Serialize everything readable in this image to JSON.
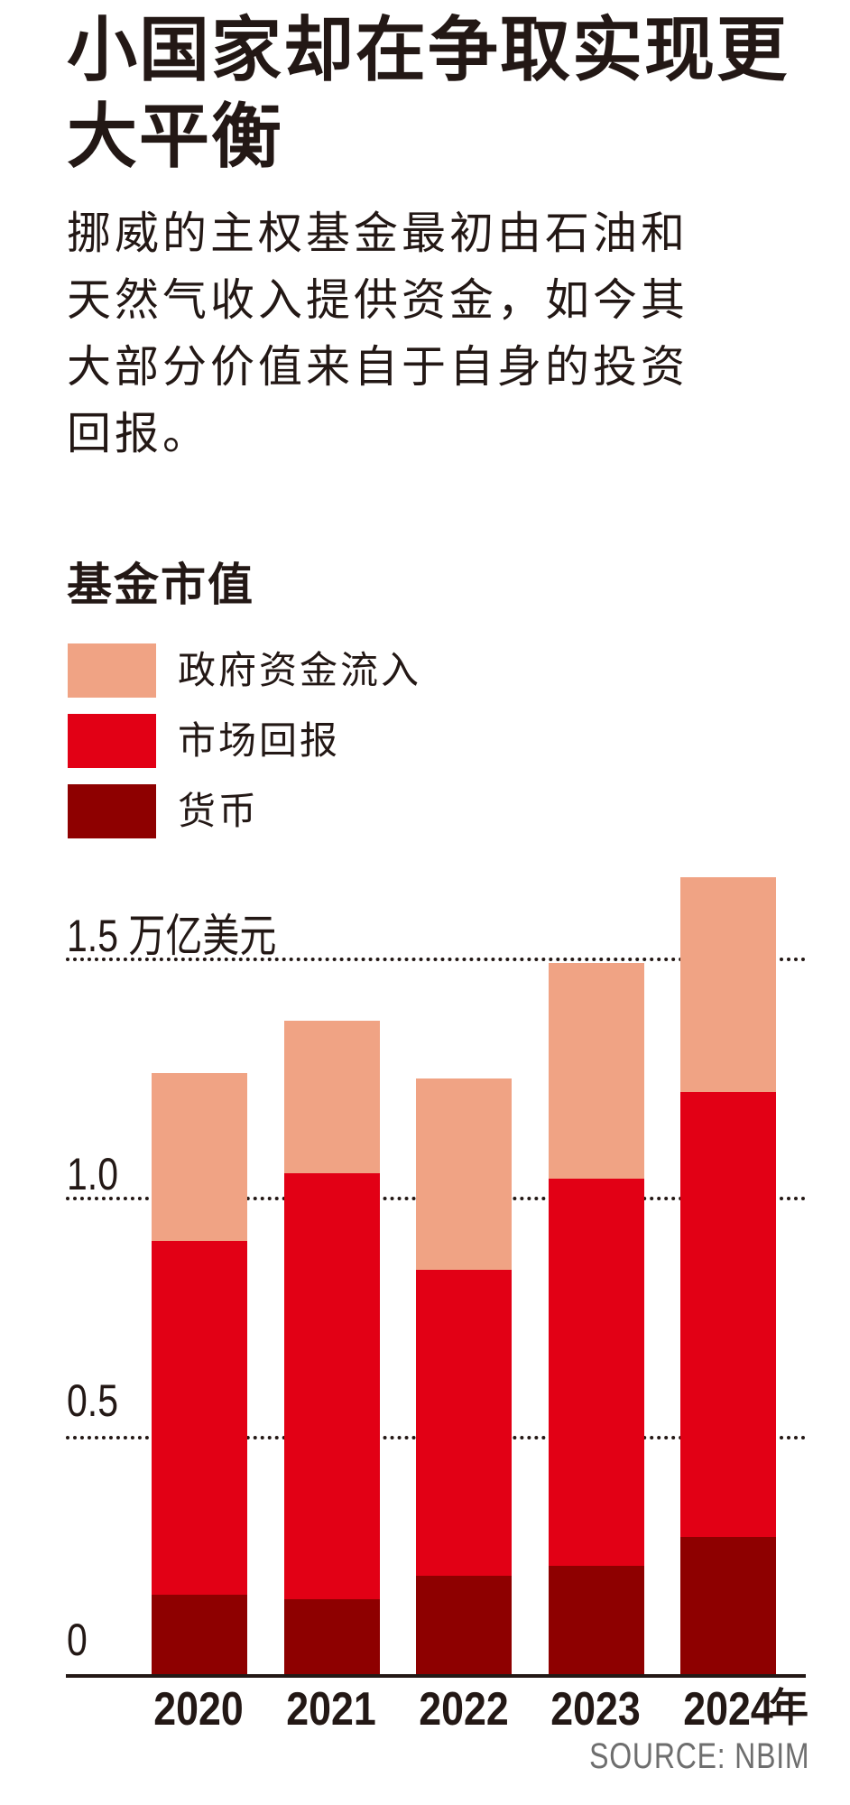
{
  "header": {
    "title": "小国家却在争取实现更大平衡",
    "subtitle": "挪威的主权基金最初由石油和天然气收入提供资金，如今其大部分价值来自于自身的投资回报。"
  },
  "chart_heading": "基金市值",
  "legend": [
    {
      "label": "政府资金流入",
      "color": "#f0a384"
    },
    {
      "label": "市场回报",
      "color": "#e20015"
    },
    {
      "label": "货币",
      "color": "#8e0000"
    }
  ],
  "y_axis": {
    "ticks": [
      {
        "value": 0,
        "label": "0"
      },
      {
        "value": 0.5,
        "label": "0.5"
      },
      {
        "value": 1.0,
        "label": "1.0"
      },
      {
        "value": 1.5,
        "label": "1.5 万亿美元"
      }
    ]
  },
  "x_axis": {
    "unit": "年"
  },
  "source": "SOURCE: NBIM",
  "chart_data": {
    "type": "bar",
    "stacked": true,
    "title": "基金市值",
    "xlabel": "年",
    "ylabel": "万亿美元",
    "ylim": [
      0,
      1.7
    ],
    "grid": true,
    "grid_style": "dotted",
    "legend_position": "top-left",
    "categories": [
      "2020",
      "2021",
      "2022",
      "2023",
      "2024"
    ],
    "series": [
      {
        "name": "货币",
        "color": "#8e0000",
        "values": [
          0.17,
          0.16,
          0.21,
          0.23,
          0.29
        ]
      },
      {
        "name": "市场回报",
        "color": "#e20015",
        "values": [
          0.74,
          0.89,
          0.64,
          0.81,
          0.93
        ]
      },
      {
        "name": "政府资金流入",
        "color": "#f0a384",
        "values": [
          0.35,
          0.32,
          0.4,
          0.45,
          0.45
        ]
      }
    ],
    "totals": [
      1.25,
      1.37,
      1.26,
      1.49,
      1.67
    ],
    "source": "SOURCE: NBIM"
  }
}
